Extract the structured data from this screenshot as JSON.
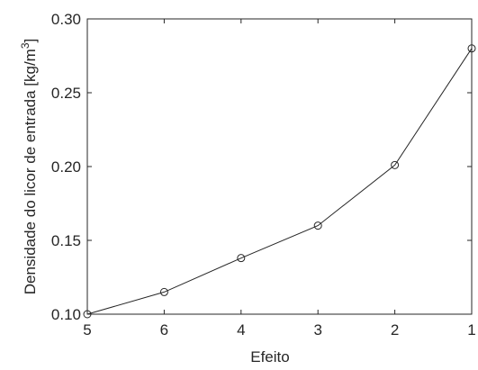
{
  "chart_data": {
    "type": "line",
    "title": "",
    "xlabel": "Efeito",
    "ylabel": "Densidade do licor de entrada [kg/m3]",
    "ylabel_parts": {
      "text": "Densidade do licor de entrada [kg/m",
      "sup": "3",
      "end": "]"
    },
    "x_categories": [
      "5",
      "6",
      "4",
      "3",
      "2",
      "1"
    ],
    "series": [
      {
        "values": [
          0.1,
          0.115,
          0.138,
          0.16,
          0.201,
          0.28
        ],
        "marker": "circle",
        "color": "#262626"
      }
    ],
    "ylim": [
      0.1,
      0.3
    ],
    "yticks": [
      "0.10",
      "0.15",
      "0.20",
      "0.25",
      "0.30"
    ],
    "grid": false
  }
}
